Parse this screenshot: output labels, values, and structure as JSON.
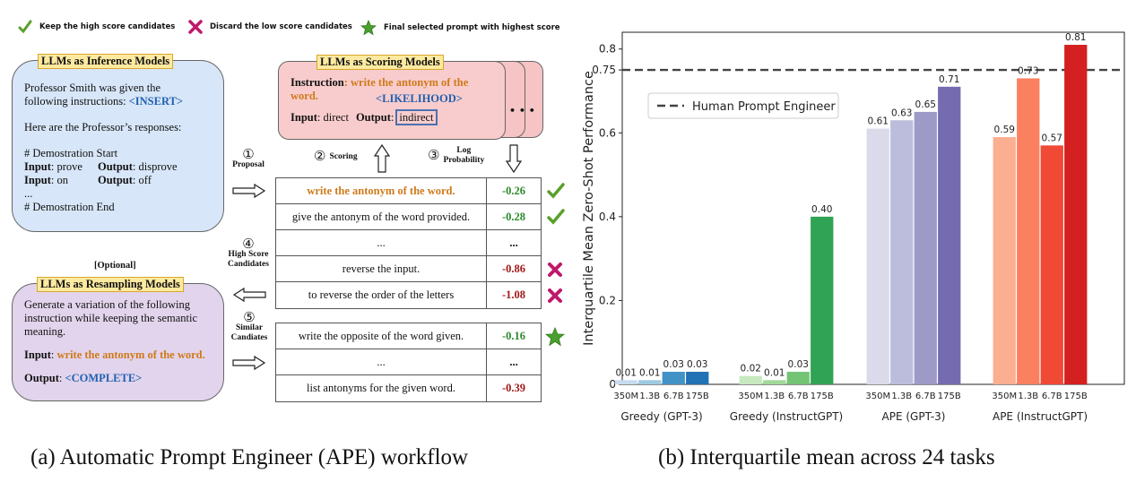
{
  "legend": {
    "keep": "Keep the high score candidates",
    "discard": "Discard the low score candidates",
    "final": "Final selected prompt with highest score"
  },
  "inference": {
    "title": "LLMs as Inference Models",
    "line1": "Professor Smith was given the",
    "line2a": "following instructions: ",
    "insert": "<INSERT>",
    "line3": "Here are the Professor’s responses:",
    "demo_start": "# Demostration Start",
    "input_label": "Input",
    "output_label": "Output",
    "in1": ": prove",
    "out1": ": disprove",
    "in2": ": on",
    "out2": ": off",
    "ellipsis": "...",
    "demo_end": "# Demostration End"
  },
  "scoring": {
    "title": "LLMs as Scoring Models",
    "instr_label": "Instruction",
    "instr_text": ": write the antonym of the",
    "instr_text2": "word.",
    "likelihood": "<LIKELIHOOD>",
    "input_label": "Input",
    "input_val": ": direct",
    "output_label": "Output",
    "output_val": "indirect",
    "dots": "• • •"
  },
  "steps": {
    "s1_num": "①",
    "s1": "Proposal",
    "s2_num": "②",
    "s2": "Scoring",
    "s3_num": "③",
    "s3a": "Log",
    "s3b": "Probability",
    "s4_num": "④",
    "s4a": "High Score",
    "s4b": "Candidates",
    "s5_num": "⑤",
    "s5a": "Similar",
    "s5b": "Candiates"
  },
  "table1": [
    {
      "text": "write the antonym of the word.",
      "score": "-0.26",
      "hl": true
    },
    {
      "text": "give the antonym of the word provided.",
      "score": "-0.28"
    },
    {
      "text": "...",
      "score": "..."
    },
    {
      "text": "reverse the input.",
      "score": "-0.86"
    },
    {
      "text": "to reverse the order of the letters",
      "score": "-1.08"
    }
  ],
  "table2": [
    {
      "text": "write the opposite of the word given.",
      "score": "-0.16"
    },
    {
      "text": "...",
      "score": "..."
    },
    {
      "text": "list antonyms for the given word.",
      "score": "-0.39"
    }
  ],
  "resampling": {
    "optional": "[Optional]",
    "title": "LLMs as Resampling Models",
    "line1": "Generate a variation of the following",
    "line2": "instruction while keeping the semantic",
    "line3": "meaning.",
    "input_label": "Input",
    "input_val": "write the antonym of the word.",
    "output_label": "Output",
    "complete": "<COMPLETE>"
  },
  "captions": {
    "a": "(a) Automatic Prompt Engineer (APE) workflow",
    "b": "(b) Interquartile mean across 24 tasks"
  },
  "chart_data": {
    "type": "bar",
    "ylabel": "Interquartile Mean Zero-Shot Performance",
    "xlabel": "",
    "ylim": [
      0,
      0.84
    ],
    "yticks": [
      "0",
      "0.2",
      "0.4",
      "0.6",
      "0.75",
      "0.8"
    ],
    "ytick_values": [
      0,
      0.2,
      0.4,
      0.6,
      0.75,
      0.8
    ],
    "size_labels": [
      "350M",
      "1.3B",
      "6.7B",
      "175B"
    ],
    "reference_line": {
      "value": 0.75,
      "label": "Human Prompt Engineer",
      "style": "dashed"
    },
    "legend_position": "upper-left",
    "groups": [
      {
        "name": "Greedy (GPT-3)",
        "values": [
          0.01,
          0.01,
          0.03,
          0.03
        ],
        "labels": [
          "0.01",
          "0.01",
          "0.03",
          "0.03"
        ],
        "colors": [
          "#c6dbef",
          "#9ecae1",
          "#4292c6",
          "#2171b5"
        ]
      },
      {
        "name": "Greedy (InstructGPT)",
        "values": [
          0.02,
          0.01,
          0.03,
          0.4
        ],
        "labels": [
          "0.02",
          "0.01",
          "0.03",
          "0.40"
        ],
        "colors": [
          "#c7e9c0",
          "#a1d99b",
          "#74c476",
          "#31a354"
        ]
      },
      {
        "name": "APE (GPT-3)",
        "values": [
          0.61,
          0.63,
          0.65,
          0.71
        ],
        "labels": [
          "0.61",
          "0.63",
          "0.65",
          "0.71"
        ],
        "colors": [
          "#dadaeb",
          "#bcbddc",
          "#9e9ac8",
          "#756bb1"
        ]
      },
      {
        "name": "APE (InstructGPT)",
        "values": [
          0.59,
          0.73,
          0.57,
          0.81
        ],
        "labels": [
          "0.59",
          "0.73",
          "0.57",
          "0.81"
        ],
        "colors": [
          "#fcae91",
          "#fb8060",
          "#f04a36",
          "#d42020"
        ]
      }
    ]
  }
}
